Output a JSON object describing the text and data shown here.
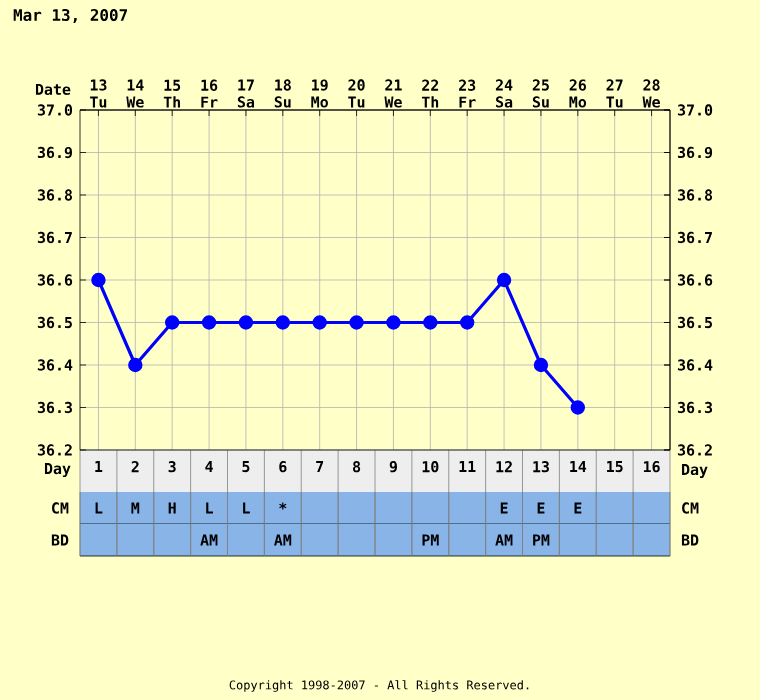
{
  "chart_data": [
    {
      "type": "line",
      "title": "Mar 13, 2007",
      "xlabel": "Day",
      "x2label": "Date",
      "categories": [
        "1",
        "2",
        "3",
        "4",
        "5",
        "6",
        "7",
        "8",
        "9",
        "10",
        "11",
        "12",
        "13",
        "14",
        "15",
        "16"
      ],
      "x2lim": [
        12.5,
        28.5
      ],
      "x2ticks": [
        {
          "value": 13,
          "label": "13 Tu"
        },
        {
          "value": 14,
          "label": "14 We"
        },
        {
          "value": 15,
          "label": "15 Th"
        },
        {
          "value": 16,
          "label": "16 Fr"
        },
        {
          "value": 17,
          "label": "17 Sa"
        },
        {
          "value": 18,
          "label": "18 Su"
        },
        {
          "value": 19,
          "label": "19 Mo"
        },
        {
          "value": 20,
          "label": "20 Tu"
        },
        {
          "value": 21,
          "label": "21 We"
        },
        {
          "value": 22,
          "label": "22 Th"
        },
        {
          "value": 23,
          "label": "23 Fr"
        },
        {
          "value": 24,
          "label": "24 Sa"
        },
        {
          "value": 25,
          "label": "25 Su"
        },
        {
          "value": 26,
          "label": "26 Mo"
        },
        {
          "value": 27,
          "label": "27 Tu"
        },
        {
          "value": 28,
          "label": "28 We"
        }
      ],
      "series": [
        {
          "color": "#0000ff",
          "values": [
            36.6,
            36.4,
            36.5,
            36.5,
            36.5,
            36.5,
            36.5,
            36.5,
            36.5,
            36.5,
            36.5,
            36.6,
            36.4,
            36.3,
            null,
            null
          ]
        }
      ],
      "ylim": [
        36.2,
        37.0
      ],
      "yticks": [
        36.2,
        36.3,
        36.4,
        36.5,
        36.6,
        36.7,
        36.8,
        36.9,
        {
          "value": 37.0,
          "label": "37.0"
        }
      ],
      "y2lim": [
        36.2,
        37.0
      ],
      "y2ticks": [
        36.2,
        36.3,
        36.4,
        36.5,
        36.6,
        36.7,
        36.8,
        36.9,
        {
          "value": 37.0,
          "label": "37.0"
        }
      ],
      "grid": true,
      "marker": "circle",
      "line_style": "solid",
      "annotations": [
        "Copyright 1998-2007 - All Rights Reserved."
      ]
    },
    {
      "type": "heatmap",
      "tick_labels": "y",
      "categories": [
        "1",
        "2",
        "3",
        "4",
        "5",
        "6",
        "7",
        "8",
        "9",
        "10",
        "11",
        "12",
        "13",
        "14",
        "15",
        "16"
      ],
      "y_categories": [
        "CM",
        "BD"
      ],
      "y2_categories": [
        "CM",
        "BD"
      ],
      "cells": [
        [
          null,
          null,
          null,
          null,
          null,
          null,
          null,
          null,
          null,
          null,
          null,
          null,
          null,
          null,
          null,
          null
        ],
        [
          null,
          null,
          null,
          null,
          null,
          null,
          null,
          null,
          null,
          null,
          null,
          null,
          null,
          null,
          null,
          null
        ]
      ],
      "cell_labels": [
        [
          "L",
          "M",
          "H",
          "L",
          "L",
          "*",
          null,
          null,
          null,
          null,
          null,
          "E",
          "E",
          "E",
          null,
          null
        ],
        [
          null,
          null,
          null,
          "AM",
          null,
          "AM",
          null,
          null,
          null,
          "PM",
          null,
          "AM",
          "PM",
          null,
          null,
          null
        ]
      ]
    }
  ]
}
